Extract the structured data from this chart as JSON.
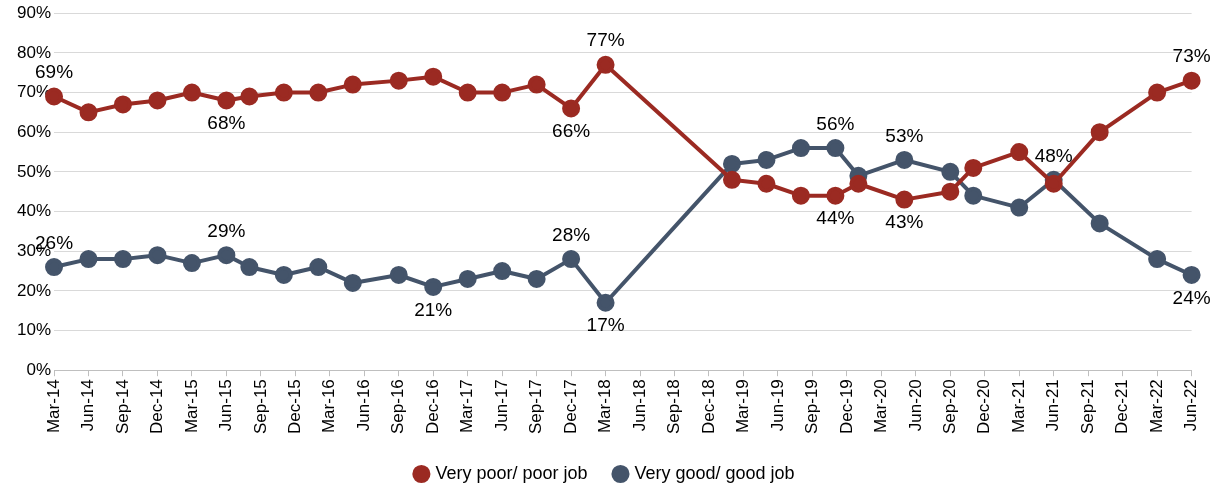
{
  "chart_data": {
    "type": "line",
    "marker": "circle",
    "grid": "y",
    "legend": "bottom",
    "xlim": [
      "2014-03",
      "2022-06"
    ],
    "xticks": [
      {
        "value": "2014-03",
        "label": "Mar-14"
      },
      {
        "value": "2014-06",
        "label": "Jun-14"
      },
      {
        "value": "2014-09",
        "label": "Sep-14"
      },
      {
        "value": "2014-12",
        "label": "Dec-14"
      },
      {
        "value": "2015-03",
        "label": "Mar-15"
      },
      {
        "value": "2015-06",
        "label": "Jun-15"
      },
      {
        "value": "2015-09",
        "label": "Sep-15"
      },
      {
        "value": "2015-12",
        "label": "Dec-15"
      },
      {
        "value": "2016-03",
        "label": "Mar-16"
      },
      {
        "value": "2016-06",
        "label": "Jun-16"
      },
      {
        "value": "2016-09",
        "label": "Sep-16"
      },
      {
        "value": "2016-12",
        "label": "Dec-16"
      },
      {
        "value": "2017-03",
        "label": "Mar-17"
      },
      {
        "value": "2017-06",
        "label": "Jun-17"
      },
      {
        "value": "2017-09",
        "label": "Sep-17"
      },
      {
        "value": "2017-12",
        "label": "Dec-17"
      },
      {
        "value": "2018-03",
        "label": "Mar-18"
      },
      {
        "value": "2018-06",
        "label": "Jun-18"
      },
      {
        "value": "2018-09",
        "label": "Sep-18"
      },
      {
        "value": "2018-12",
        "label": "Dec-18"
      },
      {
        "value": "2019-03",
        "label": "Mar-19"
      },
      {
        "value": "2019-06",
        "label": "Jun-19"
      },
      {
        "value": "2019-09",
        "label": "Sep-19"
      },
      {
        "value": "2019-12",
        "label": "Dec-19"
      },
      {
        "value": "2020-03",
        "label": "Mar-20"
      },
      {
        "value": "2020-06",
        "label": "Jun-20"
      },
      {
        "value": "2020-09",
        "label": "Sep-20"
      },
      {
        "value": "2020-12",
        "label": "Dec-20"
      },
      {
        "value": "2021-03",
        "label": "Mar-21"
      },
      {
        "value": "2021-06",
        "label": "Jun-21"
      },
      {
        "value": "2021-09",
        "label": "Sep-21"
      },
      {
        "value": "2021-12",
        "label": "Dec-21"
      },
      {
        "value": "2022-03",
        "label": "Mar-22"
      },
      {
        "value": "2022-06",
        "label": "Jun-22"
      }
    ],
    "ylim": [
      0,
      90
    ],
    "yticks": [
      {
        "value": 0,
        "label": "0%"
      },
      {
        "value": 10,
        "label": "10%"
      },
      {
        "value": 20,
        "label": "20%"
      },
      {
        "value": 30,
        "label": "30%"
      },
      {
        "value": 40,
        "label": "40%"
      },
      {
        "value": 50,
        "label": "50%"
      },
      {
        "value": 60,
        "label": "60%"
      },
      {
        "value": 70,
        "label": "70%"
      },
      {
        "value": 80,
        "label": "80%"
      },
      {
        "value": 90,
        "label": "90%"
      }
    ],
    "x": [
      "2014-03",
      "2014-06",
      "2014-09",
      "2014-12",
      "2015-03",
      "2015-06",
      "2015-08",
      "2015-11",
      "2016-02",
      "2016-05",
      "2016-09",
      "2016-12",
      "2017-03",
      "2017-06",
      "2017-09",
      "2017-12",
      "2018-03",
      "2019-02",
      "2019-05",
      "2019-08",
      "2019-11",
      "2020-01",
      "2020-05",
      "2020-09",
      "2020-11",
      "2021-03",
      "2021-06",
      "2021-10",
      "2022-03",
      "2022-06"
    ],
    "series": [
      {
        "name": "Very good/ good job",
        "color": "#44546a",
        "values": [
          26,
          28,
          28,
          29,
          27,
          29,
          26,
          24,
          26,
          22,
          24,
          21,
          23,
          25,
          23,
          28,
          17,
          52,
          53,
          56,
          56,
          49,
          53,
          50,
          44,
          41,
          48,
          37,
          28,
          24
        ],
        "value_labels": [
          "26%",
          null,
          null,
          null,
          null,
          "29%",
          null,
          null,
          null,
          null,
          null,
          "21%",
          null,
          null,
          null,
          "28%",
          "17%",
          null,
          null,
          null,
          "56%",
          null,
          "53%",
          null,
          null,
          null,
          "48%",
          null,
          null,
          "24%"
        ]
      },
      {
        "name": "Very poor/ poor job",
        "color": "#9b2a22",
        "values": [
          69,
          65,
          67,
          68,
          70,
          68,
          69,
          70,
          70,
          72,
          73,
          74,
          70,
          70,
          72,
          66,
          77,
          48,
          47,
          44,
          44,
          47,
          43,
          45,
          51,
          55,
          47,
          60,
          70,
          73
        ],
        "value_labels": [
          "69%",
          null,
          null,
          null,
          null,
          "68%",
          null,
          null,
          null,
          null,
          null,
          null,
          null,
          null,
          null,
          "66%",
          "77%",
          null,
          null,
          null,
          "44%",
          null,
          "43%",
          null,
          null,
          null,
          null,
          null,
          null,
          "73%"
        ]
      }
    ]
  }
}
